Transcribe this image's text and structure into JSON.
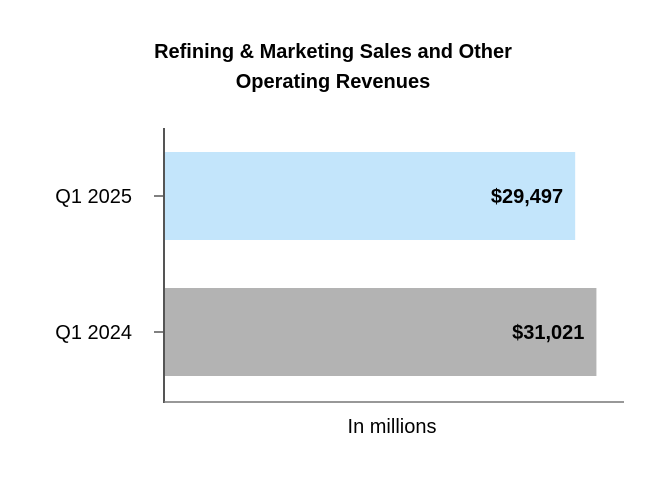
{
  "chart_data": {
    "type": "bar",
    "orientation": "horizontal",
    "title": [
      "Refining & Marketing Sales and Other",
      "Operating Revenues"
    ],
    "xlabel": "In millions",
    "ylabel": "",
    "categories": [
      "Q1 2025",
      "Q1 2024"
    ],
    "values": [
      29497,
      31021
    ],
    "value_labels": [
      "$29,497",
      "$31,021"
    ],
    "bar_colors": [
      "#c3e5fb",
      "#b3b3b3"
    ],
    "xlim": [
      0,
      33000
    ],
    "grid": false,
    "legend": "none"
  }
}
